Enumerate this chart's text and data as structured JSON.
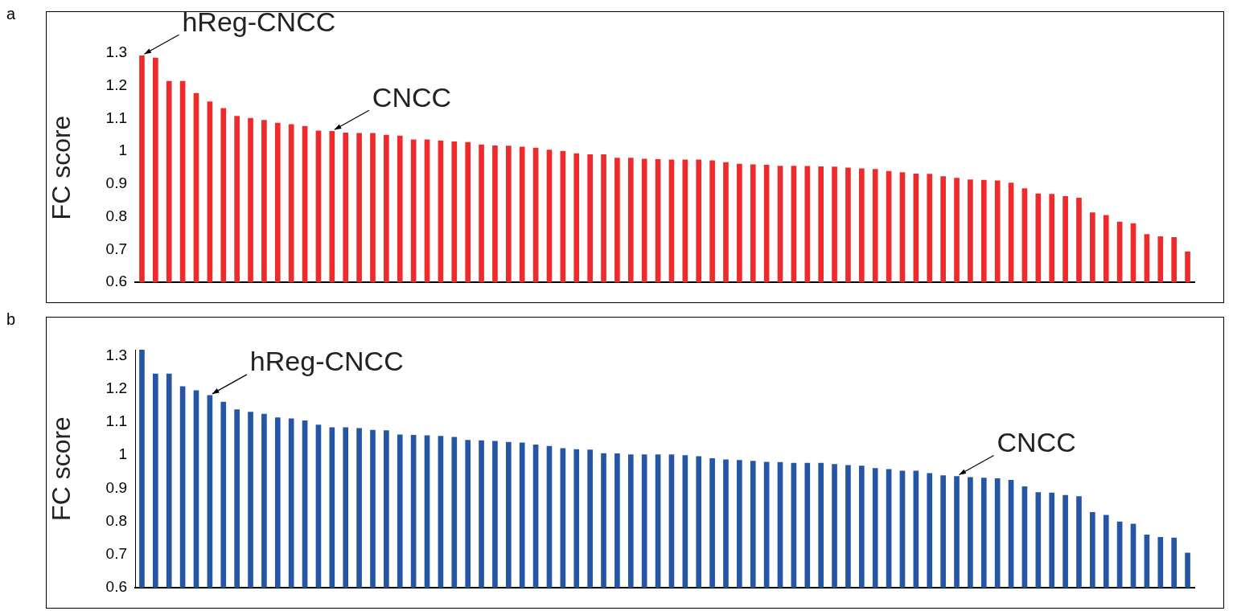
{
  "chart_data": [
    {
      "type": "bar",
      "title": "a",
      "ylabel": "FC score",
      "categories": [
        null,
        null,
        null,
        null,
        null,
        null,
        null,
        null,
        null,
        null,
        null,
        null,
        null,
        null,
        null,
        null,
        null,
        null,
        null,
        null,
        null,
        null,
        null,
        null,
        null,
        null,
        null,
        null,
        null,
        null,
        null,
        null,
        null,
        null,
        null,
        null,
        null,
        null,
        null,
        null,
        null,
        null,
        null,
        null,
        null,
        null,
        null,
        null,
        null,
        null,
        null,
        null,
        null,
        null,
        null,
        null,
        null,
        null,
        null,
        null,
        null,
        null,
        null,
        null,
        null,
        null,
        null,
        null,
        null,
        null,
        null,
        null,
        null,
        null,
        null,
        null,
        null,
        null
      ],
      "values": [
        1.292,
        1.285,
        1.214,
        1.214,
        1.177,
        1.151,
        1.131,
        1.107,
        1.101,
        1.095,
        1.086,
        1.082,
        1.076,
        1.062,
        1.061,
        1.056,
        1.055,
        1.055,
        1.049,
        1.047,
        1.035,
        1.035,
        1.032,
        1.029,
        1.027,
        1.02,
        1.017,
        1.016,
        1.013,
        1.01,
        1.004,
        1.0,
        0.993,
        0.99,
        0.99,
        0.979,
        0.979,
        0.976,
        0.975,
        0.974,
        0.974,
        0.974,
        0.971,
        0.966,
        0.961,
        0.959,
        0.958,
        0.955,
        0.955,
        0.954,
        0.953,
        0.952,
        0.949,
        0.947,
        0.945,
        0.939,
        0.935,
        0.931,
        0.93,
        0.923,
        0.918,
        0.913,
        0.912,
        0.91,
        0.903,
        0.886,
        0.87,
        0.869,
        0.862,
        0.857,
        0.812,
        0.804,
        0.784,
        0.779,
        0.746,
        0.739,
        0.737,
        0.693
      ],
      "color": "#ee2b2b",
      "ylim": [
        0.6,
        1.3
      ],
      "yticks": [
        0.6,
        0.7,
        0.8,
        0.9,
        1,
        1.1,
        1.2,
        1.3
      ],
      "tick_labels": "y",
      "annotations": [
        "hReg-CNCC",
        "CNCC"
      ]
    },
    {
      "type": "bar",
      "title": "b",
      "ylabel": "FC score",
      "categories": [
        null,
        null,
        null,
        null,
        null,
        null,
        null,
        null,
        null,
        null,
        null,
        null,
        null,
        null,
        null,
        null,
        null,
        null,
        null,
        null,
        null,
        null,
        null,
        null,
        null,
        null,
        null,
        null,
        null,
        null,
        null,
        null,
        null,
        null,
        null,
        null,
        null,
        null,
        null,
        null,
        null,
        null,
        null,
        null,
        null,
        null,
        null,
        null,
        null,
        null,
        null,
        null,
        null,
        null,
        null,
        null,
        null,
        null,
        null,
        null,
        null,
        null,
        null,
        null,
        null,
        null,
        null,
        null,
        null,
        null,
        null,
        null,
        null,
        null,
        null,
        null,
        null,
        null
      ],
      "values": [
        1.318,
        1.245,
        1.245,
        1.207,
        1.195,
        1.18,
        1.16,
        1.137,
        1.13,
        1.124,
        1.113,
        1.11,
        1.104,
        1.091,
        1.083,
        1.083,
        1.081,
        1.075,
        1.074,
        1.061,
        1.06,
        1.059,
        1.057,
        1.054,
        1.045,
        1.044,
        1.042,
        1.039,
        1.037,
        1.031,
        1.027,
        1.02,
        1.017,
        1.016,
        1.005,
        1.004,
        1.001,
        1.001,
        1.001,
        1.001,
        0.999,
        0.996,
        0.99,
        0.986,
        0.984,
        0.982,
        0.979,
        0.978,
        0.976,
        0.976,
        0.976,
        0.972,
        0.969,
        0.967,
        0.96,
        0.957,
        0.952,
        0.952,
        0.945,
        0.938,
        0.936,
        0.933,
        0.931,
        0.929,
        0.924,
        0.905,
        0.887,
        0.886,
        0.879,
        0.875,
        0.827,
        0.819,
        0.799,
        0.792,
        0.759,
        0.752,
        0.75,
        0.705
      ],
      "color": "#2456a5",
      "ylim": [
        0.6,
        1.318
      ],
      "yticks": [
        0.6,
        0.7,
        0.8,
        0.9,
        1,
        1.1,
        1.2,
        1.3
      ],
      "tick_labels": "y",
      "annotations": [
        "hReg-CNCC",
        "CNCC"
      ]
    }
  ]
}
